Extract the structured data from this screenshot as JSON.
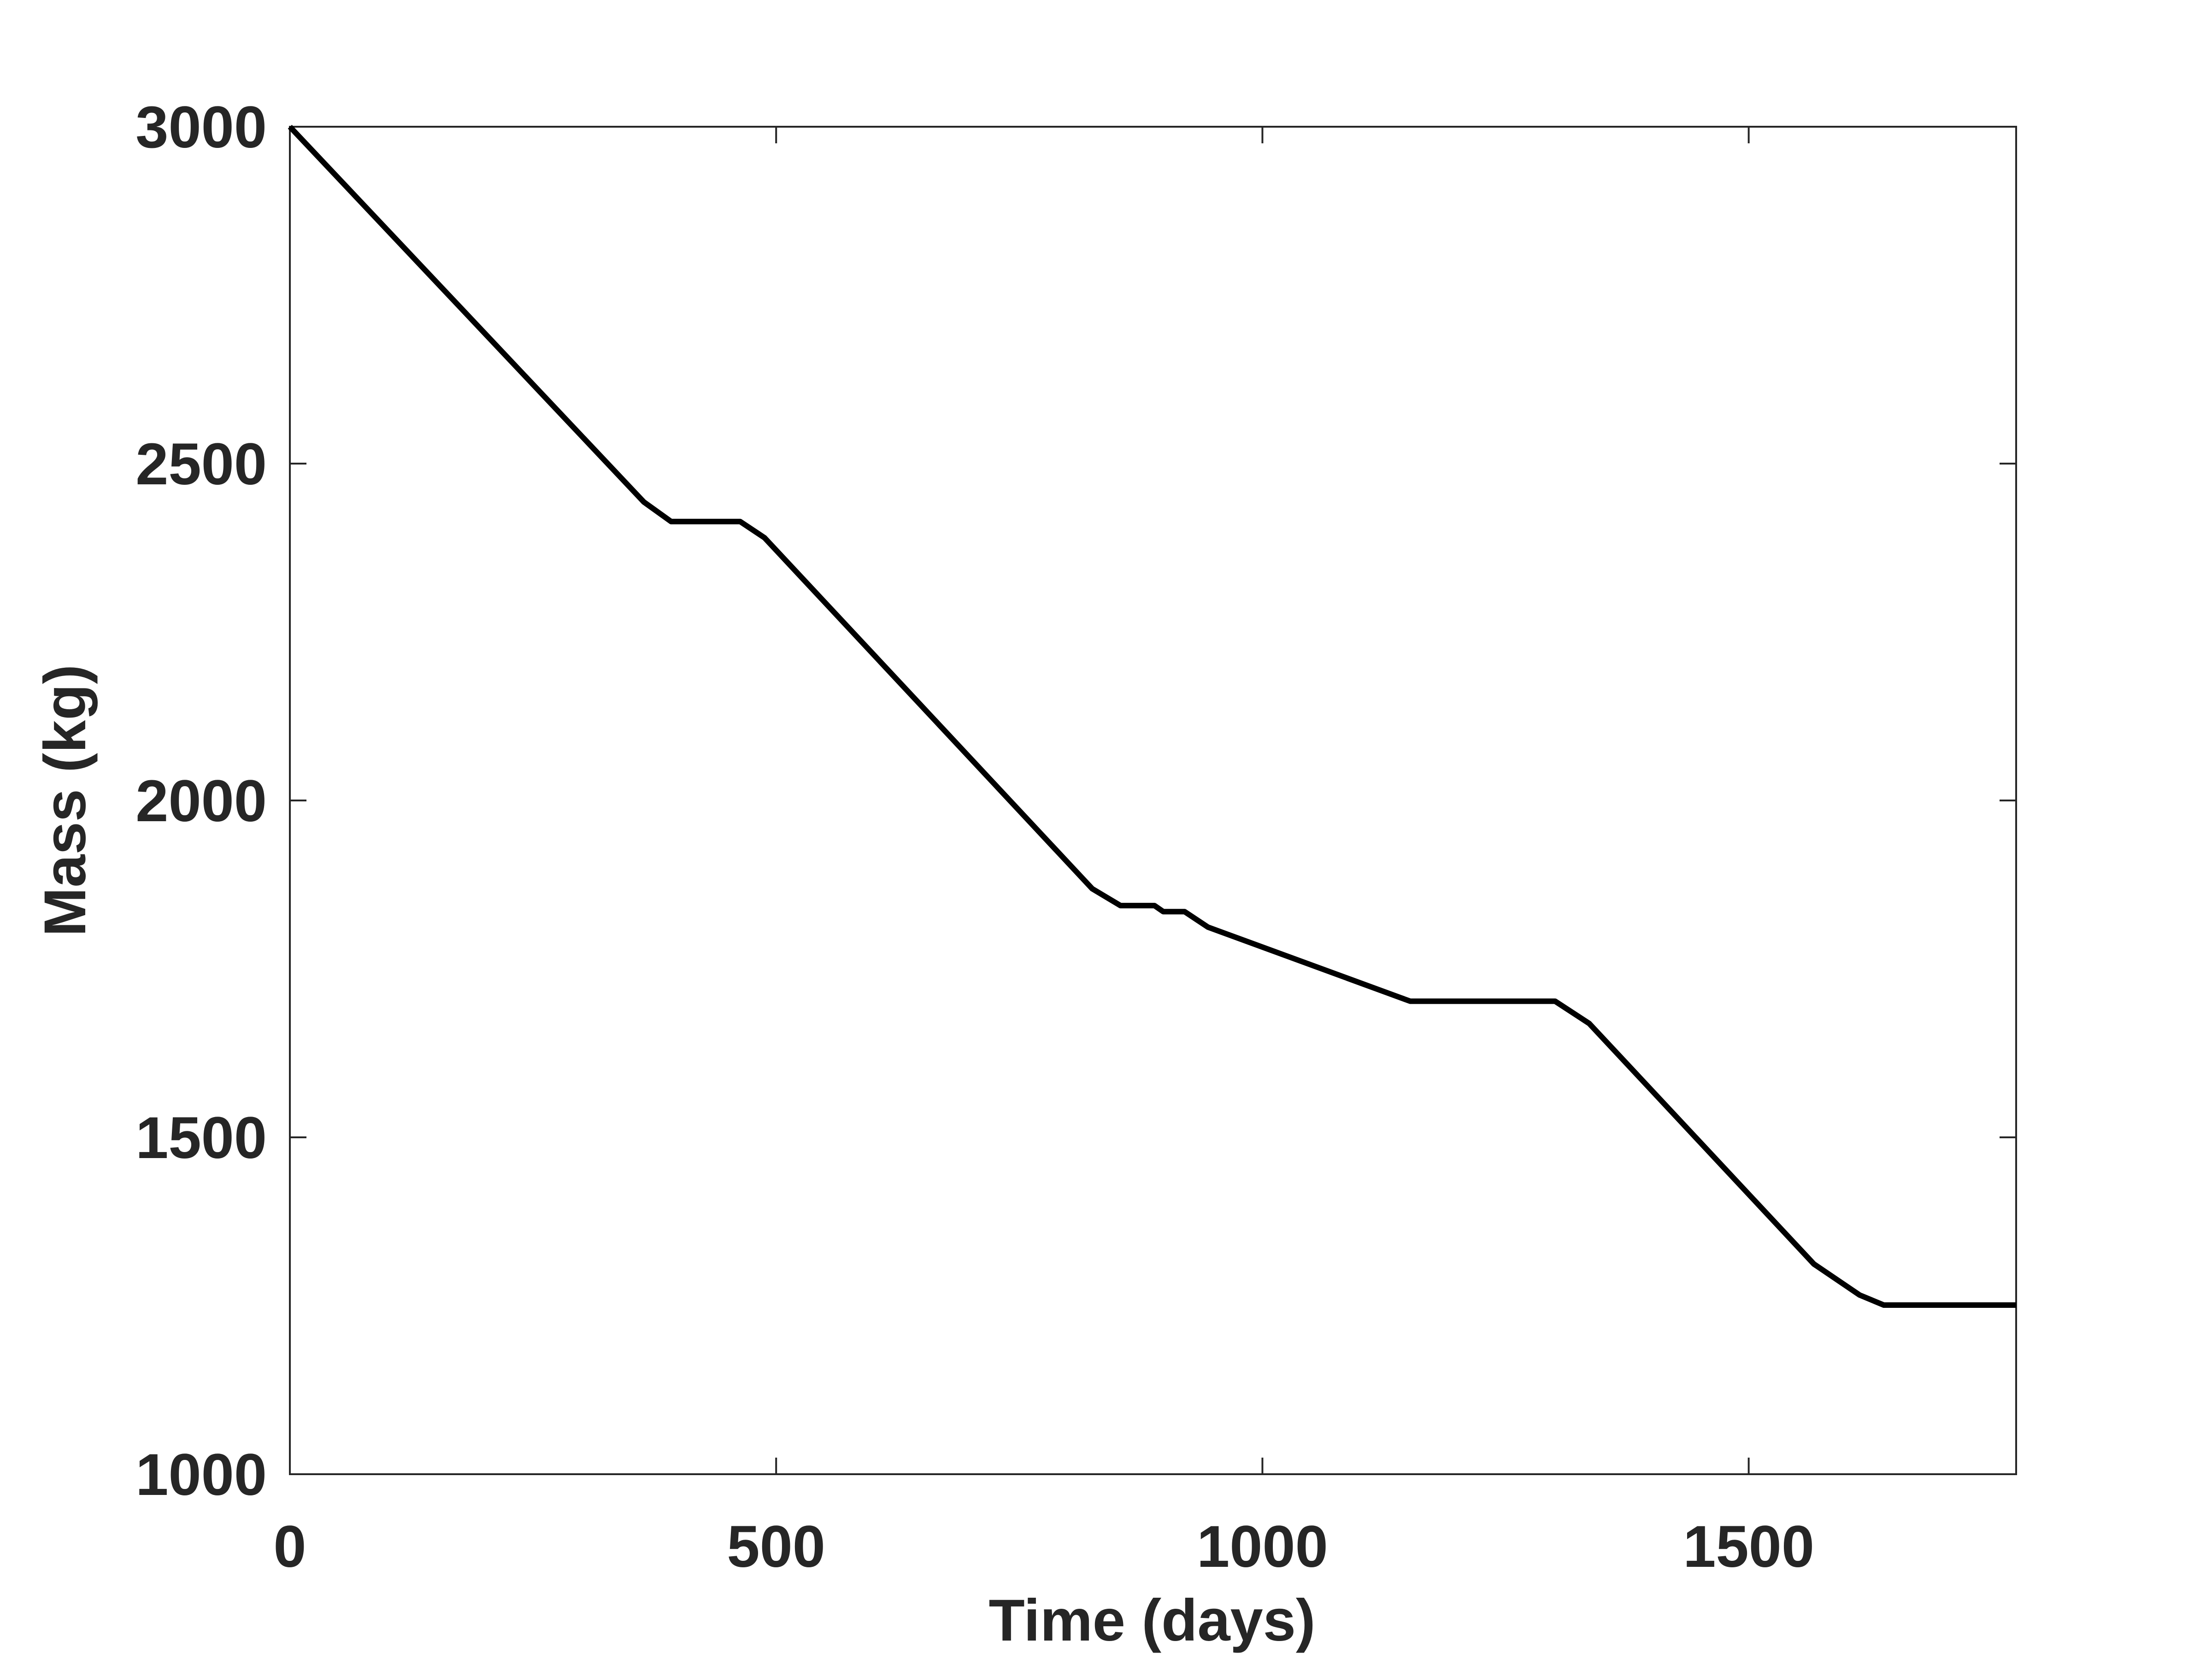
{
  "chart_data": {
    "type": "line",
    "xlabel": "Time (days)",
    "ylabel": "Mass (kg)",
    "x": [
      0,
      364,
      392,
      463,
      488,
      825,
      854,
      889,
      898,
      920,
      944,
      1152,
      1301,
      1336,
      1567,
      1614,
      1639,
      1775
    ],
    "values": [
      3000,
      2443,
      2414,
      2414,
      2390,
      1869,
      1844,
      1844,
      1835,
      1835,
      1812,
      1702,
      1702,
      1669,
      1312,
      1266,
      1251,
      1251
    ],
    "color": "#000000",
    "xlim": [
      0,
      1775
    ],
    "ylim": [
      1000,
      3000
    ],
    "xticks": [
      0,
      500,
      1000,
      1500
    ],
    "yticks": [
      1000,
      1500,
      2000,
      2500,
      3000
    ],
    "grid": false
  }
}
